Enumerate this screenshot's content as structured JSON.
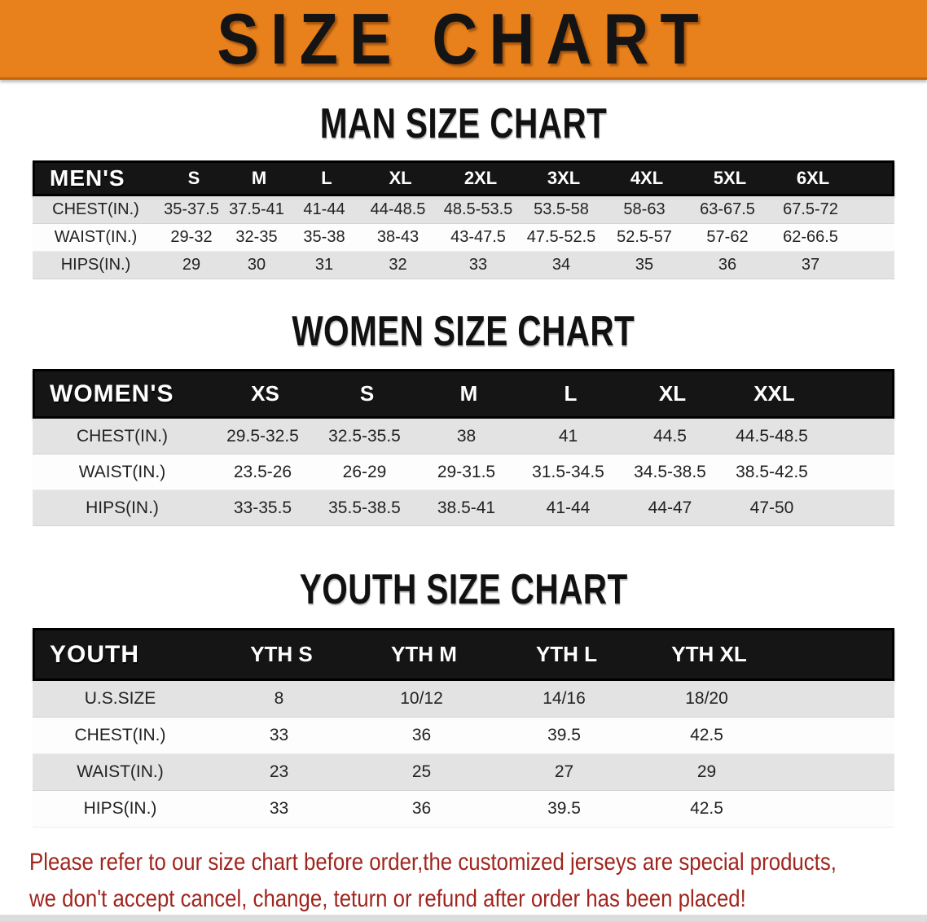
{
  "banner": {
    "title": "SIZE CHART"
  },
  "colors": {
    "banner_bg": "#E8811B",
    "banner_edge": "#C4660E",
    "header_bar": "#151515",
    "row_stripe": "#E3E3E3",
    "notice_red": "#A0251E"
  },
  "sections": [
    {
      "id": "men",
      "heading": "MAN SIZE CHART",
      "table": {
        "header": [
          "MEN'S",
          "S",
          "M",
          "L",
          "XL",
          "2XL",
          "3XL",
          "4XL",
          "5XL",
          "6XL"
        ],
        "rows": [
          [
            "CHEST(IN.)",
            "35-37.5",
            "37.5-41",
            "41-44",
            "44-48.5",
            "48.5-53.5",
            "53.5-58",
            "58-63",
            "63-67.5",
            "67.5-72"
          ],
          [
            "WAIST(IN.)",
            "29-32",
            "32-35",
            "35-38",
            "38-43",
            "43-47.5",
            "47.5-52.5",
            "52.5-57",
            "57-62",
            "62-66.5"
          ],
          [
            "HIPS(IN.)",
            "29",
            "30",
            "31",
            "32",
            "33",
            "34",
            "35",
            "36",
            "37"
          ]
        ]
      }
    },
    {
      "id": "women",
      "heading": "WOMEN SIZE CHART",
      "table": {
        "header": [
          "WOMEN'S",
          "XS",
          "S",
          "M",
          "L",
          "XL",
          "XXL"
        ],
        "rows": [
          [
            "CHEST(IN.)",
            "29.5-32.5",
            "32.5-35.5",
            "38",
            "41",
            "44.5",
            "44.5-48.5"
          ],
          [
            "WAIST(IN.)",
            "23.5-26",
            "26-29",
            "29-31.5",
            "31.5-34.5",
            "34.5-38.5",
            "38.5-42.5"
          ],
          [
            "HIPS(IN.)",
            "33-35.5",
            "35.5-38.5",
            "38.5-41",
            "41-44",
            "44-47",
            "47-50"
          ]
        ]
      }
    },
    {
      "id": "youth",
      "heading": "YOUTH SIZE CHART",
      "table": {
        "header": [
          "YOUTH",
          "YTH S",
          "YTH M",
          "YTH L",
          "YTH XL"
        ],
        "rows": [
          [
            "U.S.SIZE",
            "8",
            "10/12",
            "14/16",
            "18/20"
          ],
          [
            "CHEST(IN.)",
            "33",
            "36",
            "39.5",
            "42.5"
          ],
          [
            "WAIST(IN.)",
            "23",
            "25",
            "27",
            "29"
          ],
          [
            "HIPS(IN.)",
            "33",
            "36",
            "39.5",
            "42.5"
          ]
        ]
      }
    }
  ],
  "footer": {
    "line1": "Please refer to our size chart before order,the customized jerseys are special products,",
    "line2": "we don't accept cancel, change, teturn or refund after order has been placed!"
  }
}
